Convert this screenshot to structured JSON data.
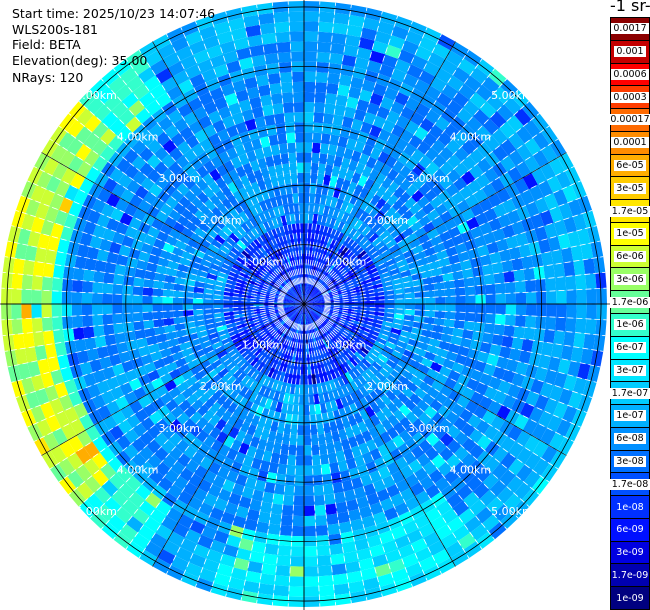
{
  "info": {
    "start_time": "Start time: 2025/10/23 14:07:46",
    "instrument": "WLS200s-181",
    "field": "Field: BETA",
    "elevation": "Elevation(deg): 35.00",
    "nrays": "NRays: 120"
  },
  "colorbar": {
    "title_fragment": "-1 sr-",
    "labels": [
      "0.0017",
      "0.001",
      "0.0006",
      "0.0003",
      "0.00017",
      "0.0001",
      "6e-05",
      "3e-05",
      "1.7e-05",
      "1e-05",
      "6e-06",
      "3e-06",
      "1.7e-06",
      "1e-06",
      "6e-07",
      "3e-07",
      "1.7e-07",
      "1e-07",
      "6e-08",
      "3e-08",
      "1.7e-08",
      "1e-08",
      "6e-09",
      "3e-09",
      "1.7e-09",
      "1e-09"
    ],
    "colors": [
      "#8b0000",
      "#c40000",
      "#ff0000",
      "#ff3c00",
      "#ff6a00",
      "#ff8c00",
      "#ffad00",
      "#ffcc00",
      "#ffe600",
      "#ffff00",
      "#ccff33",
      "#99ff66",
      "#66ff99",
      "#33ffcc",
      "#00ffff",
      "#00e6ff",
      "#00ccff",
      "#00b0ff",
      "#0090ff",
      "#0070ff",
      "#0050ff",
      "#0030ff",
      "#0010ff",
      "#0000e0",
      "#0000b0",
      "#000080"
    ]
  },
  "chart_data": {
    "type": "heatmap",
    "projection": "polar-ppi",
    "field": "BETA",
    "elevation_deg": 35.0,
    "n_rays": 120,
    "range_km_max": 5.1,
    "range_ring_labels": [
      "1.00km",
      "2.00km",
      "3.00km",
      "4.00km",
      "5.00km"
    ],
    "range_rings_km": [
      1,
      2,
      3,
      4,
      5
    ],
    "grid": true,
    "colorscale": "log, 1e-09 to 0.0017 (jet)",
    "description_values": {
      "background_beta": "1e-07 to 6e-08",
      "near_range_minimum": "1e-08 to 1.7e-08",
      "west_edge_maximum": "3e-06 to 1e-05"
    }
  }
}
